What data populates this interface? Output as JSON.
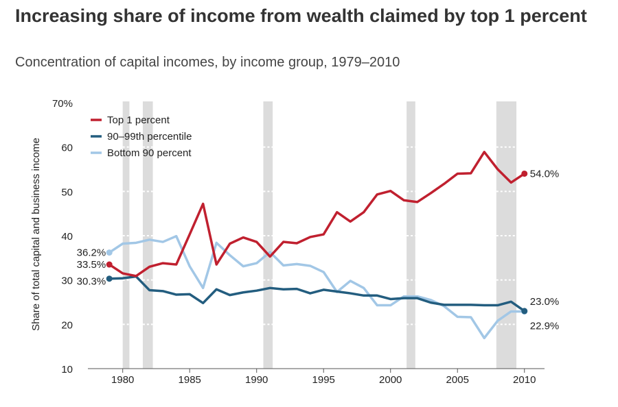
{
  "chart_data": {
    "type": "line",
    "title": "Increasing share of income from wealth claimed by top 1 percent",
    "subtitle": "Concentration of capital incomes, by income group, 1979–2010",
    "ylabel": "Share of total capital and business income",
    "xlabel": "",
    "ylim": [
      10,
      70
    ],
    "xlim": [
      1977.4,
      2011.5
    ],
    "y_ticks": [
      {
        "value": 10,
        "label": "10"
      },
      {
        "value": 20,
        "label": "20"
      },
      {
        "value": 30,
        "label": "30"
      },
      {
        "value": 40,
        "label": "40"
      },
      {
        "value": 50,
        "label": "50"
      },
      {
        "value": 60,
        "label": "60"
      },
      {
        "value": 70,
        "label": "70%"
      }
    ],
    "x_ticks": [
      {
        "value": 1980,
        "label": "1980"
      },
      {
        "value": 1985,
        "label": "1985"
      },
      {
        "value": 1990,
        "label": "1990"
      },
      {
        "value": 1995,
        "label": "1995"
      },
      {
        "value": 2000,
        "label": "2000"
      },
      {
        "value": 2005,
        "label": "2005"
      },
      {
        "value": 2010,
        "label": "2010"
      }
    ],
    "recessions": [
      [
        1980.0,
        1980.5
      ],
      [
        1981.5,
        1982.25
      ],
      [
        1990.5,
        1991.2
      ],
      [
        2001.2,
        2001.85
      ],
      [
        2007.9,
        2009.4
      ]
    ],
    "grid": "dotted white lines within shaded recession bars",
    "legend_position": "top-left",
    "x": [
      1979,
      1980,
      1981,
      1982,
      1983,
      1984,
      1985,
      1986,
      1987,
      1988,
      1989,
      1990,
      1991,
      1992,
      1993,
      1994,
      1995,
      1996,
      1997,
      1998,
      1999,
      2000,
      2001,
      2002,
      2003,
      2004,
      2005,
      2006,
      2007,
      2008,
      2009,
      2010
    ],
    "series": [
      {
        "name": "Top 1 percent",
        "color": "#c0202f",
        "values": [
          33.5,
          31.5,
          30.9,
          33.0,
          33.8,
          33.5,
          40.3,
          47.2,
          33.5,
          38.2,
          39.6,
          38.6,
          35.3,
          38.6,
          38.3,
          39.7,
          40.3,
          45.3,
          43.2,
          45.3,
          49.3,
          50.1,
          48.0,
          47.6,
          49.6,
          51.7,
          54.0,
          54.1,
          58.9,
          55.0,
          52.0,
          54.0
        ],
        "start_label": "33.5%",
        "end_label": "54.0%"
      },
      {
        "name": "90–99th percentile",
        "color": "#235d7f",
        "values": [
          30.3,
          30.4,
          30.8,
          27.7,
          27.5,
          26.7,
          26.8,
          24.8,
          27.9,
          26.6,
          27.2,
          27.6,
          28.2,
          27.9,
          28.0,
          27.0,
          27.8,
          27.4,
          27.0,
          26.5,
          26.5,
          25.7,
          25.9,
          25.9,
          24.9,
          24.4,
          24.4,
          24.4,
          24.3,
          24.3,
          25.1,
          23.0
        ],
        "start_label": "30.3%",
        "end_label": "23.0%"
      },
      {
        "name": "Bottom 90 percent",
        "color": "#a2c7e6",
        "values": [
          36.2,
          38.2,
          38.4,
          39.1,
          38.6,
          39.9,
          33.1,
          28.2,
          38.4,
          35.6,
          33.1,
          33.8,
          36.3,
          33.3,
          33.6,
          33.2,
          31.8,
          27.3,
          29.8,
          28.2,
          24.3,
          24.3,
          26.3,
          26.3,
          25.5,
          24.1,
          21.7,
          21.6,
          16.9,
          20.8,
          22.9,
          22.9
        ],
        "start_label": "36.2%",
        "end_label": "22.9%"
      }
    ]
  }
}
